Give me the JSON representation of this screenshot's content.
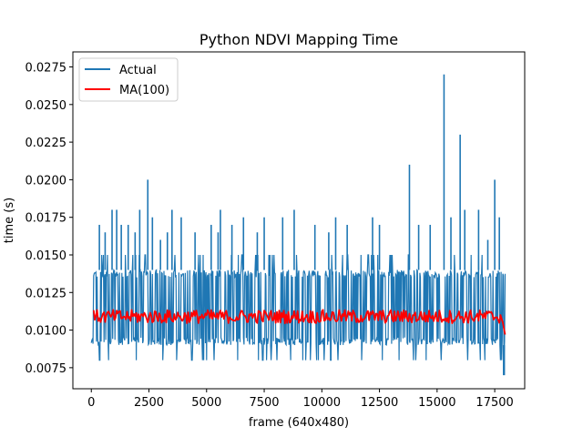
{
  "chart_data": {
    "type": "line",
    "title": "Python NDVI Mapping Time",
    "xlabel": "frame (640x480)",
    "ylabel": "time (s)",
    "xlim": [
      -800,
      18800
    ],
    "ylim": [
      0.0061,
      0.0285
    ],
    "xticks": [
      0,
      2500,
      5000,
      7500,
      10000,
      12500,
      15000,
      17500
    ],
    "xtick_labels": [
      "0",
      "2500",
      "5000",
      "7500",
      "10000",
      "12500",
      "15000",
      "17500"
    ],
    "yticks": [
      0.0075,
      0.01,
      0.0125,
      0.015,
      0.0175,
      0.02,
      0.0225,
      0.025,
      0.0275
    ],
    "ytick_labels": [
      "0.0075",
      "0.0100",
      "0.0125",
      "0.0150",
      "0.0175",
      "0.0200",
      "0.0225",
      "0.0250",
      "0.0275"
    ],
    "legend_position": "top-left",
    "grid": false,
    "series": [
      {
        "name": "Actual",
        "color": "#1f77b4",
        "description_note": "",
        "band": {
          "x_start": 0,
          "x_end": 17950,
          "low": 0.009,
          "high": 0.014,
          "typical_peak": 0.015,
          "typical_trough": 0.008
        },
        "spikes": [
          [
            350,
            0.017
          ],
          [
            600,
            0.0165
          ],
          [
            900,
            0.018
          ],
          [
            1100,
            0.018
          ],
          [
            1300,
            0.017
          ],
          [
            1600,
            0.017
          ],
          [
            1900,
            0.0165
          ],
          [
            2100,
            0.018
          ],
          [
            2450,
            0.02
          ],
          [
            2650,
            0.0175
          ],
          [
            3000,
            0.016
          ],
          [
            3300,
            0.0165
          ],
          [
            3500,
            0.018
          ],
          [
            3900,
            0.0175
          ],
          [
            4500,
            0.0165
          ],
          [
            5200,
            0.017
          ],
          [
            5500,
            0.0165
          ],
          [
            5600,
            0.018
          ],
          [
            6100,
            0.017
          ],
          [
            6600,
            0.0175
          ],
          [
            7200,
            0.0165
          ],
          [
            7500,
            0.0175
          ],
          [
            8300,
            0.0175
          ],
          [
            8800,
            0.018
          ],
          [
            9700,
            0.017
          ],
          [
            10300,
            0.0165
          ],
          [
            10600,
            0.0175
          ],
          [
            11100,
            0.017
          ],
          [
            12200,
            0.0175
          ],
          [
            12500,
            0.017
          ],
          [
            13800,
            0.021
          ],
          [
            14200,
            0.017
          ],
          [
            14700,
            0.017
          ],
          [
            15300,
            0.027
          ],
          [
            15600,
            0.0175
          ],
          [
            16000,
            0.023
          ],
          [
            16200,
            0.018
          ],
          [
            16800,
            0.018
          ],
          [
            17200,
            0.016
          ],
          [
            17500,
            0.02
          ],
          [
            17700,
            0.0175
          ]
        ],
        "dips": [
          [
            17900,
            0.007
          ]
        ]
      },
      {
        "name": "MA(100)",
        "color": "#ff0000",
        "x_start": 100,
        "x_end": 17950,
        "mean": 0.0109,
        "range": [
          0.0105,
          0.0114
        ],
        "end_value": 0.0097
      }
    ]
  }
}
